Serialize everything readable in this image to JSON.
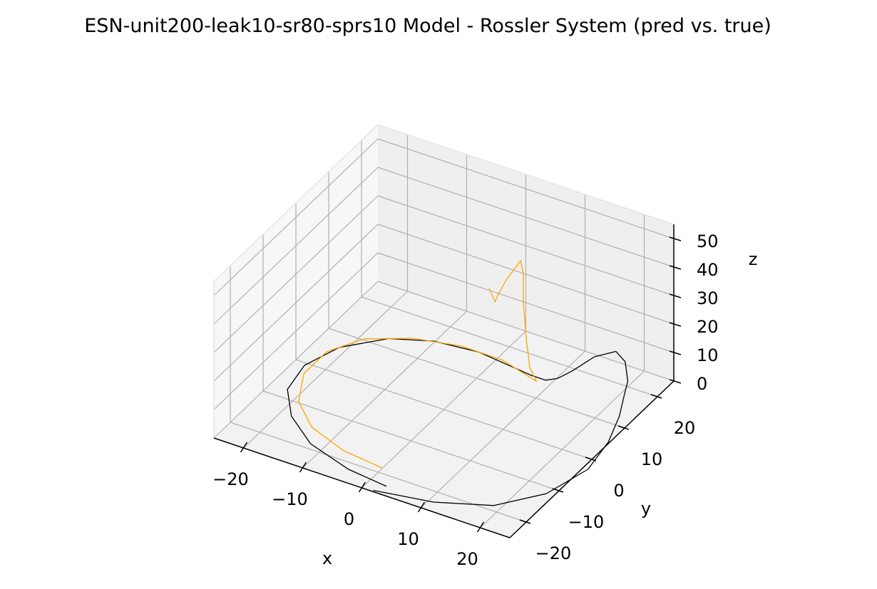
{
  "chart_data": {
    "type": "line3d",
    "title": "ESN-unit200-leak10-sr80-sprs10 Model - Rossler System (pred vs. true)",
    "xlabel": "x",
    "ylabel": "y",
    "zlabel": "z",
    "x_ticks": [
      "−20",
      "−10",
      "0",
      "10",
      "20"
    ],
    "y_ticks": [
      "−20",
      "−10",
      "0",
      "10",
      "20"
    ],
    "z_ticks": [
      "0",
      "10",
      "20",
      "30",
      "40",
      "50"
    ],
    "xlim": [
      -25,
      25
    ],
    "ylim": [
      -25,
      25
    ],
    "zlim": [
      0,
      55
    ],
    "grid": true,
    "series": [
      {
        "color": "#000000",
        "points": [
          [
            2,
            -25,
            0.5
          ],
          [
            11,
            -23,
            0.5
          ],
          [
            19,
            -19,
            0.5
          ],
          [
            24,
            -12,
            0.5
          ],
          [
            26,
            -3,
            0.5
          ],
          [
            25,
            5,
            0.5
          ],
          [
            23,
            12,
            0.5
          ],
          [
            21,
            17,
            0.5
          ],
          [
            20,
            20,
            2
          ],
          [
            19,
            21,
            7
          ],
          [
            18,
            20,
            11
          ],
          [
            16,
            17,
            11
          ],
          [
            14,
            14,
            8
          ],
          [
            12,
            13,
            5
          ],
          [
            10,
            13,
            3
          ],
          [
            7,
            14,
            1.5
          ],
          [
            3,
            15,
            0.8
          ],
          [
            -3,
            16,
            0.5
          ],
          [
            -10,
            15,
            0.5
          ],
          [
            -16,
            12,
            0.5
          ],
          [
            -21,
            6,
            0.5
          ],
          [
            -23,
            -1,
            0.5
          ],
          [
            -22,
            -8,
            0.5
          ],
          [
            -18,
            -14,
            0.5
          ],
          [
            -12,
            -19,
            0.5
          ],
          [
            -4,
            -22,
            0.5
          ],
          [
            3,
            -23,
            0.5
          ]
        ]
      },
      {
        "color": "#ffa500",
        "points": [
          [
            0,
            -19,
            0.5
          ],
          [
            -7,
            -18,
            0.5
          ],
          [
            -14,
            -15,
            0.5
          ],
          [
            -19,
            -10,
            0.5
          ],
          [
            -22,
            -3,
            0.5
          ],
          [
            -22,
            4,
            0.5
          ],
          [
            -19,
            10,
            0.5
          ],
          [
            -13,
            14,
            0.5
          ],
          [
            -6,
            16,
            0.5
          ],
          [
            1,
            16,
            0.5
          ],
          [
            7,
            14,
            0.5
          ],
          [
            9,
            12,
            3
          ],
          [
            9,
            10,
            10
          ],
          [
            9,
            9,
            20
          ],
          [
            9,
            8,
            35
          ],
          [
            9,
            8,
            45
          ],
          [
            8,
            9,
            48
          ],
          [
            5,
            10,
            38
          ],
          [
            3,
            11,
            30
          ],
          [
            2,
            12,
            26
          ],
          [
            1.5,
            12,
            28
          ],
          [
            1,
            12,
            30
          ]
        ]
      }
    ]
  }
}
